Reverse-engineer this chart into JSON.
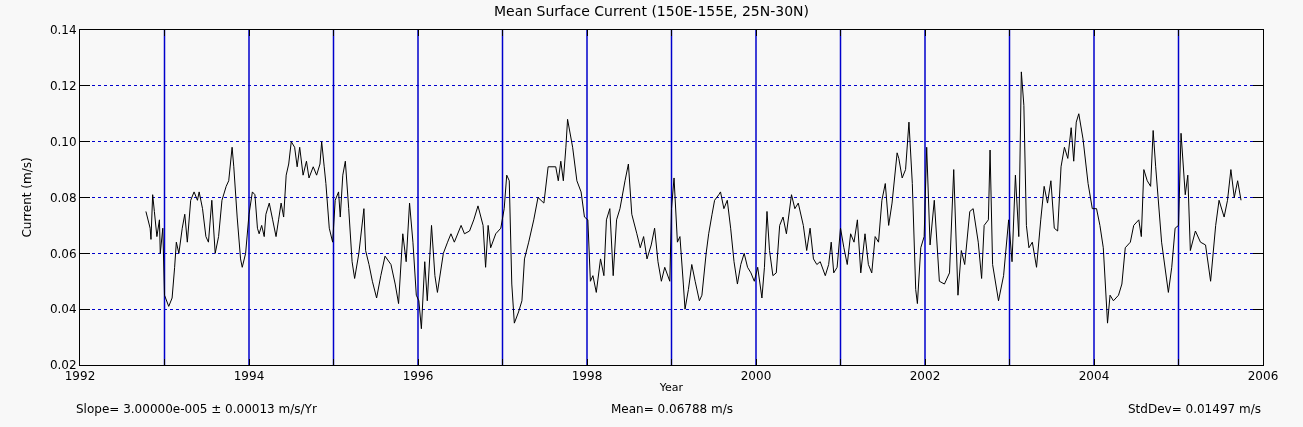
{
  "chart_data": {
    "type": "line",
    "title": "Mean Surface Current (150E-155E, 25N-30N)",
    "xlabel": "Year",
    "ylabel": "Current (m/s)",
    "annotations": [
      "Slope= 3.00000e-005 ± 0.00013 m/s/Yr",
      "Mean= 0.06788 m/s",
      "StdDev= 0.01497 m/s"
    ],
    "xlim": [
      1992,
      2006
    ],
    "ylim": [
      0.02,
      0.14
    ],
    "xticks": [
      1992,
      {
        "value": 1993,
        "label": null
      },
      1994,
      {
        "value": 1995,
        "label": null
      },
      1996,
      {
        "value": 1997,
        "label": null
      },
      1998,
      {
        "value": 1999,
        "label": null
      },
      2000,
      {
        "value": 2001,
        "label": null
      },
      2002,
      {
        "value": 2003,
        "label": null
      },
      2004,
      {
        "value": 2005,
        "label": null
      },
      2006
    ],
    "yticks": [
      0.02,
      0.04,
      0.06,
      0.08,
      {
        "value": 0.1,
        "label": "0.10"
      },
      0.12,
      0.14
    ],
    "grid": "y",
    "ref_lines": [
      {
        "axis": "x",
        "value": 1993,
        "color": "#0000cc"
      },
      {
        "axis": "x",
        "value": 1994,
        "color": "#0000cc"
      },
      {
        "axis": "x",
        "value": 1995,
        "color": "#0000cc"
      },
      {
        "axis": "x",
        "value": 1996,
        "color": "#0000cc"
      },
      {
        "axis": "x",
        "value": 1997,
        "color": "#0000cc"
      },
      {
        "axis": "x",
        "value": 1998,
        "color": "#0000cc"
      },
      {
        "axis": "x",
        "value": 1999,
        "color": "#0000cc"
      },
      {
        "axis": "x",
        "value": 2000,
        "color": "#0000cc"
      },
      {
        "axis": "x",
        "value": 2001,
        "color": "#0000cc"
      },
      {
        "axis": "x",
        "value": 2002,
        "color": "#0000cc"
      },
      {
        "axis": "x",
        "value": 2003,
        "color": "#0000cc"
      },
      {
        "axis": "x",
        "value": 2004,
        "color": "#0000cc"
      },
      {
        "axis": "x",
        "value": 2005,
        "color": "#0000cc"
      }
    ],
    "series": [
      {
        "color": "#000000",
        "x": [
          1992.78,
          1992.83,
          1992.84,
          1992.86,
          1992.88,
          1992.91,
          1992.94,
          1992.95,
          1992.98,
          1993.0,
          1993.05,
          1993.09,
          1993.12,
          1993.14,
          1993.17,
          1993.21,
          1993.24,
          1993.27,
          1993.31,
          1993.35,
          1993.39,
          1993.41,
          1993.45,
          1993.49,
          1993.52,
          1993.56,
          1993.6,
          1993.64,
          1993.68,
          1993.73,
          1993.76,
          1993.8,
          1993.82,
          1993.86,
          1993.9,
          1993.92,
          1993.96,
          1994.0,
          1994.04,
          1994.07,
          1994.1,
          1994.12,
          1994.15,
          1994.18,
          1994.2,
          1994.24,
          1994.28,
          1994.32,
          1994.35,
          1994.38,
          1994.41,
          1994.44,
          1994.47,
          1994.5,
          1994.54,
          1994.57,
          1994.6,
          1994.64,
          1994.68,
          1994.71,
          1994.76,
          1994.8,
          1994.84,
          1994.86,
          1994.89,
          1994.91,
          1994.95,
          1994.99,
          1995.02,
          1995.06,
          1995.08,
          1995.11,
          1995.14,
          1995.18,
          1995.22,
          1995.25,
          1995.3,
          1995.33,
          1995.36,
          1995.38,
          1995.42,
          1995.46,
          1995.51,
          1995.56,
          1995.61,
          1995.68,
          1995.73,
          1995.77,
          1995.82,
          1995.86,
          1995.9,
          1995.94,
          1995.98,
          1996.01,
          1996.04,
          1996.08,
          1996.11,
          1996.16,
          1996.2,
          1996.23,
          1996.3,
          1996.35,
          1996.39,
          1996.43,
          1996.51,
          1996.55,
          1996.61,
          1996.66,
          1996.71,
          1996.77,
          1996.8,
          1996.83,
          1996.86,
          1996.92,
          1996.98,
          1997.02,
          1997.05,
          1997.08,
          1997.11,
          1997.14,
          1997.19,
          1997.23,
          1997.26,
          1997.31,
          1997.37,
          1997.42,
          1997.49,
          1997.54,
          1997.63,
          1997.66,
          1997.69,
          1997.72,
          1997.75,
          1997.77,
          1997.83,
          1997.88,
          1997.93,
          1997.97,
          1998.01,
          1998.04,
          1998.07,
          1998.11,
          1998.16,
          1998.2,
          1998.23,
          1998.27,
          1998.31,
          1998.35,
          1998.39,
          1998.45,
          1998.49,
          1998.53,
          1998.59,
          1998.63,
          1998.67,
          1998.71,
          1998.76,
          1998.8,
          1998.84,
          1998.88,
          1998.92,
          1998.98,
          1999.0,
          1999.03,
          1999.07,
          1999.1,
          1999.14,
          1999.16,
          1999.2,
          1999.24,
          1999.28,
          1999.33,
          1999.36,
          1999.41,
          1999.44,
          1999.48,
          1999.51,
          1999.56,
          1999.58,
          1999.62,
          1999.66,
          1999.7,
          1999.74,
          1999.78,
          1999.82,
          1999.86,
          1999.9,
          1999.94,
          1999.98,
          2000.02,
          2000.07,
          2000.1,
          2000.13,
          2000.16,
          2000.2,
          2000.24,
          2000.28,
          2000.32,
          2000.36,
          2000.42,
          2000.46,
          2000.5,
          2000.56,
          2000.6,
          2000.64,
          2000.68,
          2000.72,
          2000.76,
          2000.82,
          2000.86,
          2000.89,
          2000.92,
          2000.96,
          2001.0,
          2001.04,
          2001.08,
          2001.12,
          2001.16,
          2001.2,
          2001.24,
          2001.29,
          2001.33,
          2001.37,
          2001.41,
          2001.45,
          2001.49,
          2001.53,
          2001.57,
          2001.61,
          2001.67,
          2001.69,
          2001.73,
          2001.77,
          2001.81,
          2001.85,
          2001.89,
          2001.91,
          2001.95,
          2001.99,
          2002.02,
          2002.06,
          2002.11,
          2002.17,
          2002.23,
          2002.29,
          2002.34,
          2002.39,
          2002.43,
          2002.47,
          2002.53,
          2002.57,
          2002.63,
          2002.67,
          2002.7,
          2002.75,
          2002.77,
          2002.8,
          2002.87,
          2002.93,
          2002.99,
          2003.03,
          2003.07,
          2003.11,
          2003.14,
          2003.17,
          2003.2,
          2003.23,
          2003.27,
          2003.32,
          2003.37,
          2003.41,
          2003.45,
          2003.49,
          2003.53,
          2003.57,
          2003.61,
          2003.65,
          2003.69,
          2003.73,
          2003.76,
          2003.79,
          2003.82,
          2003.87,
          2003.93,
          2003.98,
          2004.03,
          2004.07,
          2004.11,
          2004.16,
          2004.19,
          2004.23,
          2004.29,
          2004.33,
          2004.37,
          2004.43,
          2004.47,
          2004.53,
          2004.56,
          2004.59,
          2004.63,
          2004.67,
          2004.7,
          2004.73,
          2004.8,
          2004.88,
          2004.92,
          2004.96,
          2005.0,
          2005.03,
          2005.08,
          2005.11,
          2005.14,
          2005.2,
          2005.26,
          2005.32,
          2005.38,
          2005.44,
          2005.48,
          2005.54,
          2005.58,
          2005.62,
          2005.66,
          2005.7,
          2005.74
        ],
        "values": [
          0.075,
          0.069,
          0.065,
          0.081,
          0.075,
          0.066,
          0.072,
          0.06,
          0.069,
          0.045,
          0.041,
          0.044,
          0.055,
          0.064,
          0.06,
          0.069,
          0.074,
          0.064,
          0.079,
          0.082,
          0.079,
          0.082,
          0.076,
          0.066,
          0.064,
          0.079,
          0.06,
          0.066,
          0.079,
          0.084,
          0.086,
          0.098,
          0.091,
          0.073,
          0.058,
          0.055,
          0.06,
          0.074,
          0.082,
          0.081,
          0.069,
          0.067,
          0.07,
          0.066,
          0.074,
          0.078,
          0.072,
          0.066,
          0.072,
          0.078,
          0.073,
          0.088,
          0.092,
          0.1,
          0.098,
          0.091,
          0.098,
          0.088,
          0.093,
          0.087,
          0.091,
          0.088,
          0.092,
          0.1,
          0.091,
          0.085,
          0.069,
          0.064,
          0.079,
          0.082,
          0.073,
          0.088,
          0.093,
          0.076,
          0.057,
          0.051,
          0.06,
          0.068,
          0.076,
          0.061,
          0.056,
          0.05,
          0.044,
          0.052,
          0.059,
          0.056,
          0.049,
          0.042,
          0.067,
          0.057,
          0.078,
          0.064,
          0.045,
          0.043,
          0.033,
          0.057,
          0.043,
          0.07,
          0.052,
          0.046,
          0.06,
          0.064,
          0.067,
          0.064,
          0.07,
          0.067,
          0.068,
          0.072,
          0.077,
          0.07,
          0.055,
          0.07,
          0.062,
          0.067,
          0.069,
          0.076,
          0.088,
          0.086,
          0.049,
          0.035,
          0.039,
          0.043,
          0.058,
          0.064,
          0.072,
          0.08,
          0.078,
          0.091,
          0.091,
          0.086,
          0.093,
          0.086,
          0.098,
          0.108,
          0.098,
          0.086,
          0.082,
          0.073,
          0.072,
          0.05,
          0.052,
          0.046,
          0.058,
          0.052,
          0.072,
          0.076,
          0.052,
          0.072,
          0.076,
          0.086,
          0.092,
          0.074,
          0.067,
          0.062,
          0.066,
          0.058,
          0.063,
          0.069,
          0.057,
          0.05,
          0.055,
          0.05,
          0.076,
          0.087,
          0.064,
          0.066,
          0.049,
          0.04,
          0.047,
          0.056,
          0.05,
          0.043,
          0.045,
          0.06,
          0.067,
          0.074,
          0.079,
          0.081,
          0.082,
          0.076,
          0.079,
          0.069,
          0.057,
          0.049,
          0.056,
          0.06,
          0.055,
          0.053,
          0.05,
          0.055,
          0.044,
          0.055,
          0.075,
          0.061,
          0.052,
          0.053,
          0.07,
          0.073,
          0.067,
          0.081,
          0.076,
          0.078,
          0.07,
          0.061,
          0.069,
          0.058,
          0.056,
          0.057,
          0.052,
          0.056,
          0.064,
          0.053,
          0.055,
          0.069,
          0.062,
          0.056,
          0.067,
          0.064,
          0.072,
          0.053,
          0.067,
          0.056,
          0.053,
          0.066,
          0.064,
          0.079,
          0.085,
          0.07,
          0.078,
          0.096,
          0.094,
          0.087,
          0.09,
          0.107,
          0.085,
          0.047,
          0.042,
          0.062,
          0.066,
          0.098,
          0.063,
          0.079,
          0.05,
          0.049,
          0.053,
          0.09,
          0.045,
          0.061,
          0.056,
          0.075,
          0.076,
          0.064,
          0.051,
          0.07,
          0.072,
          0.097,
          0.056,
          0.043,
          0.052,
          0.072,
          0.057,
          0.088,
          0.066,
          0.125,
          0.113,
          0.07,
          0.062,
          0.064,
          0.055,
          0.072,
          0.084,
          0.078,
          0.086,
          0.069,
          0.068,
          0.091,
          0.098,
          0.094,
          0.105,
          0.093,
          0.107,
          0.11,
          0.101,
          0.085,
          0.076,
          0.076,
          0.07,
          0.062,
          0.035,
          0.045,
          0.043,
          0.045,
          0.049,
          0.062,
          0.064,
          0.07,
          0.072,
          0.066,
          0.09,
          0.086,
          0.084,
          0.104,
          0.091,
          0.064,
          0.046,
          0.055,
          0.069,
          0.07,
          0.103,
          0.081,
          0.088,
          0.061,
          0.068,
          0.064,
          0.063,
          0.05,
          0.07,
          0.079,
          0.073,
          0.079,
          0.09,
          0.08,
          0.086,
          0.079
        ]
      }
    ]
  }
}
